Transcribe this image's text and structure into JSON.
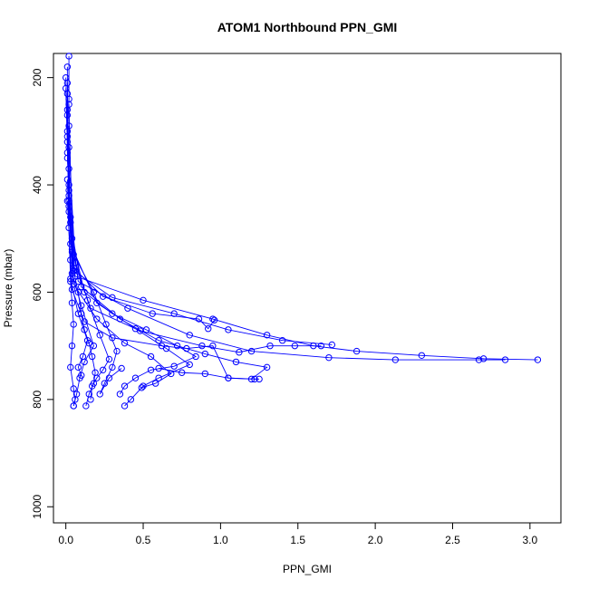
{
  "chart_data": {
    "type": "scatter",
    "title": "ATOM1 Northbound PPN_GMI",
    "xlabel": "PPN_GMI",
    "ylabel": "Pressure (mbar)",
    "xlim": [
      -0.08,
      3.2
    ],
    "ylim": [
      1030,
      155
    ],
    "y_reversed": true,
    "x_ticks": [
      0.0,
      0.5,
      1.0,
      1.5,
      2.0,
      2.5,
      3.0
    ],
    "x_tick_labels": [
      "0.0",
      "0.5",
      "1.0",
      "1.5",
      "2.0",
      "2.5",
      "3.0"
    ],
    "y_ticks": [
      200,
      400,
      600,
      800,
      1000
    ],
    "y_tick_labels": [
      "200",
      "400",
      "600",
      "800",
      "1000"
    ],
    "series_color": "#0000ff",
    "marker": "open-circle",
    "series": [
      {
        "values": [
          [
            0.02,
            160
          ],
          [
            0.02,
            240
          ],
          [
            0.01,
            320
          ],
          [
            0.02,
            400
          ],
          [
            0.03,
            460
          ],
          [
            0.04,
            520
          ],
          [
            0.05,
            560
          ],
          [
            0.08,
            600
          ],
          [
            0.1,
            640
          ],
          [
            0.12,
            670
          ],
          [
            0.15,
            695
          ],
          [
            0.17,
            720
          ],
          [
            0.19,
            750
          ],
          [
            0.18,
            770
          ],
          [
            0.15,
            790
          ],
          [
            0.13,
            812
          ]
        ]
      },
      {
        "values": [
          [
            0.01,
            180
          ],
          [
            0.01,
            260
          ],
          [
            0.01,
            340
          ],
          [
            0.02,
            420
          ],
          [
            0.02,
            480
          ],
          [
            0.03,
            540
          ],
          [
            0.03,
            580
          ],
          [
            0.04,
            620
          ],
          [
            0.05,
            660
          ],
          [
            0.04,
            700
          ],
          [
            0.03,
            740
          ],
          [
            0.05,
            780
          ],
          [
            0.06,
            800
          ],
          [
            0.05,
            812
          ]
        ]
      },
      {
        "values": [
          [
            0.0,
            200
          ],
          [
            0.01,
            300
          ],
          [
            0.02,
            450
          ],
          [
            0.05,
            560
          ],
          [
            0.3,
            610
          ],
          [
            0.7,
            640
          ],
          [
            1.05,
            670
          ],
          [
            1.4,
            690
          ],
          [
            1.72,
            698
          ]
        ]
      },
      {
        "values": [
          [
            0.01,
            210
          ],
          [
            0.02,
            430
          ],
          [
            0.06,
            570
          ],
          [
            0.5,
            615
          ],
          [
            0.95,
            650
          ],
          [
            1.3,
            680
          ],
          [
            1.6,
            700
          ],
          [
            1.88,
            710
          ],
          [
            2.3,
            718
          ],
          [
            2.7,
            724
          ],
          [
            3.05,
            726
          ]
        ]
      },
      {
        "values": [
          [
            0.0,
            220
          ],
          [
            0.02,
            440
          ],
          [
            0.08,
            580
          ],
          [
            0.4,
            630
          ],
          [
            0.8,
            680
          ],
          [
            1.2,
            710
          ],
          [
            1.7,
            722
          ],
          [
            2.13,
            726
          ],
          [
            2.67,
            726
          ],
          [
            2.84,
            726
          ]
        ]
      },
      {
        "values": [
          [
            0.01,
            230
          ],
          [
            0.03,
            470
          ],
          [
            0.1,
            590
          ],
          [
            0.35,
            650
          ],
          [
            0.6,
            690
          ],
          [
            0.9,
            715
          ],
          [
            1.1,
            730
          ],
          [
            1.3,
            740
          ],
          [
            1.2,
            762
          ],
          [
            1.05,
            760
          ],
          [
            0.9,
            752
          ],
          [
            0.75,
            750
          ],
          [
            0.6,
            742
          ]
        ]
      },
      {
        "values": [
          [
            0.02,
            250
          ],
          [
            0.04,
            500
          ],
          [
            0.12,
            600
          ],
          [
            0.3,
            640
          ],
          [
            0.52,
            670
          ],
          [
            0.72,
            700
          ],
          [
            0.84,
            720
          ],
          [
            0.7,
            738
          ],
          [
            0.55,
            745
          ],
          [
            0.45,
            760
          ],
          [
            0.38,
            775
          ],
          [
            0.35,
            790
          ]
        ]
      },
      {
        "values": [
          [
            0.01,
            270
          ],
          [
            0.03,
            510
          ],
          [
            0.2,
            620
          ],
          [
            0.45,
            668
          ],
          [
            0.65,
            705
          ],
          [
            0.8,
            735
          ],
          [
            0.6,
            760
          ],
          [
            0.5,
            775
          ],
          [
            0.42,
            800
          ],
          [
            0.38,
            812
          ]
        ]
      },
      {
        "values": [
          [
            0.02,
            290
          ],
          [
            0.05,
            530
          ],
          [
            0.18,
            600
          ],
          [
            0.26,
            660
          ],
          [
            0.33,
            710
          ],
          [
            0.3,
            740
          ],
          [
            0.25,
            770
          ],
          [
            0.22,
            790
          ],
          [
            0.28,
            760
          ],
          [
            0.36,
            742
          ]
        ]
      },
      {
        "values": [
          [
            0.01,
            310
          ],
          [
            0.04,
            525
          ],
          [
            0.14,
            615
          ],
          [
            0.22,
            680
          ],
          [
            0.28,
            725
          ],
          [
            0.24,
            745
          ],
          [
            0.2,
            760
          ],
          [
            0.17,
            775
          ],
          [
            0.16,
            800
          ]
        ]
      },
      {
        "values": [
          [
            0.02,
            330
          ],
          [
            0.06,
            545
          ],
          [
            0.16,
            630
          ],
          [
            0.48,
            672
          ],
          [
            0.88,
            700
          ],
          [
            1.12,
            712
          ],
          [
            1.32,
            700
          ],
          [
            1.48,
            700
          ],
          [
            1.65,
            700
          ]
        ]
      },
      {
        "values": [
          [
            0.01,
            350
          ],
          [
            0.05,
            555
          ],
          [
            0.24,
            608
          ],
          [
            0.56,
            640
          ],
          [
            0.86,
            650
          ],
          [
            0.92,
            668
          ],
          [
            0.96,
            652
          ]
        ]
      },
      {
        "values": [
          [
            0.02,
            370
          ],
          [
            0.04,
            565
          ],
          [
            0.1,
            625
          ],
          [
            0.18,
            700
          ],
          [
            0.12,
            730
          ],
          [
            0.09,
            760
          ],
          [
            0.07,
            790
          ],
          [
            0.05,
            812
          ]
        ]
      },
      {
        "values": [
          [
            0.01,
            390
          ],
          [
            0.03,
            575
          ],
          [
            0.08,
            640
          ],
          [
            0.14,
            690
          ],
          [
            0.11,
            720
          ],
          [
            0.08,
            740
          ],
          [
            0.1,
            755
          ]
        ]
      },
      {
        "values": [
          [
            0.02,
            410
          ],
          [
            0.05,
            585
          ],
          [
            0.2,
            650
          ],
          [
            0.38,
            695
          ],
          [
            0.55,
            720
          ],
          [
            0.68,
            752
          ],
          [
            0.58,
            770
          ],
          [
            0.49,
            778
          ]
        ]
      },
      {
        "values": [
          [
            0.01,
            430
          ],
          [
            0.04,
            595
          ],
          [
            0.12,
            655
          ],
          [
            0.3,
            685
          ],
          [
            0.62,
            700
          ],
          [
            0.78,
            705
          ],
          [
            0.95,
            700
          ],
          [
            1.05,
            760
          ],
          [
            1.22,
            762
          ],
          [
            1.25,
            762
          ]
        ]
      }
    ]
  }
}
